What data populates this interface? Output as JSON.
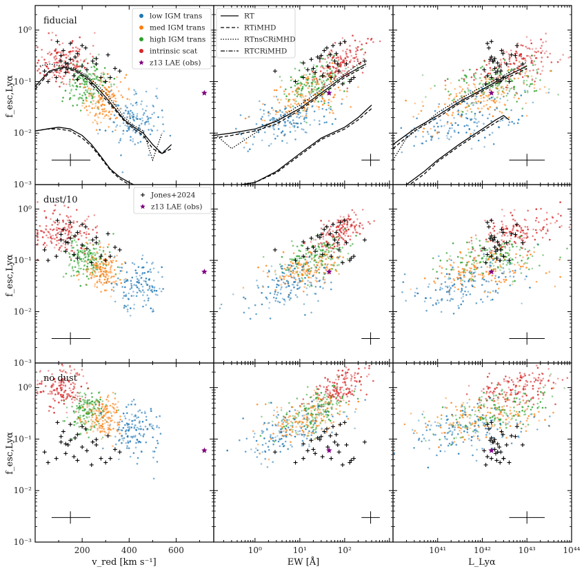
{
  "chart_data": {
    "type": "scatter",
    "layout": "3x3 grid of panels sharing axes",
    "colors": {
      "low": "#1f77b4",
      "med": "#ff7f0e",
      "high": "#2ca02c",
      "intrinsic": "#d62728",
      "obs": "#800080",
      "jones": "#000000"
    },
    "rows": [
      {
        "label": "fiducial"
      },
      {
        "label": "dust/10"
      },
      {
        "label": "no dust"
      }
    ],
    "columns": [
      {
        "xlabel": "v_red [km s⁻¹]",
        "xscale": "linear",
        "xlim": [
          0,
          760
        ],
        "xticks": [
          200,
          400,
          600
        ],
        "xticklabels": [
          "200",
          "400",
          "600"
        ]
      },
      {
        "xlabel": "EW [Å]",
        "xscale": "log",
        "xlim": [
          0.12,
          1200
        ],
        "xticks": [
          1,
          10,
          100
        ],
        "xticklabels": [
          "10⁰",
          "10¹",
          "10²"
        ]
      },
      {
        "xlabel": "L_Lyα",
        "xscale": "log",
        "xlim": [
          1e+40,
          1e+44
        ],
        "xticks": [
          1e+41,
          1e+42,
          1e+43,
          1e+44
        ],
        "xticklabels": [
          "10⁴¹",
          "10⁴²",
          "10⁴³",
          "10⁴⁴"
        ]
      }
    ],
    "ylabel": "f_esc,Lyα",
    "yscale": "log",
    "ylim": [
      0.001,
      3
    ],
    "yticks": [
      0.001,
      0.01,
      0.1,
      1
    ],
    "yticklabels": [
      "10⁻³",
      "10⁻²",
      "10⁻¹",
      "10⁰"
    ],
    "legend_scatter": {
      "location": "upper-right of top-left panel",
      "entries": [
        {
          "label": "low IGM trans",
          "color_key": "low"
        },
        {
          "label": "med IGM trans",
          "color_key": "med"
        },
        {
          "label": "high IGM trans",
          "color_key": "high"
        },
        {
          "label": "intrinsic scat",
          "color_key": "intrinsic"
        },
        {
          "label": "z13 LAE (obs)",
          "color_key": "obs",
          "marker": "star"
        }
      ]
    },
    "legend_lines": {
      "location": "upper-left of top-middle panel",
      "entries": [
        {
          "label": "RT",
          "dash": "solid"
        },
        {
          "label": "RTiMHD",
          "dash": "dashed"
        },
        {
          "label": "RTnsCRiMHD",
          "dash": "dotted"
        },
        {
          "label": "RTCRiMHD",
          "dash": "dashdot"
        }
      ]
    },
    "legend_obs": {
      "location": "upper-right of middle-left panel",
      "entries": [
        {
          "label": "Jones+2024",
          "color_key": "jones",
          "marker": "plus"
        },
        {
          "label": "z13 LAE (obs)",
          "color_key": "obs",
          "marker": "star"
        }
      ]
    },
    "z13_lae": {
      "vred": 720,
      "ew": 45,
      "lum": 1.6e+42,
      "fesc": 0.06
    },
    "error_bar_sample": {
      "vred": [
        150,
        110
      ],
      "ew": [
        380,
        1.6
      ],
      "lum": [
        1e+43,
        2.5
      ],
      "fesc": 0.003
    },
    "jones2024": [
      {
        "v": 40,
        "ew": 2.8,
        "l": 2.2e+42,
        "f": 0.16
      },
      {
        "v": 55,
        "ew": 8,
        "l": 2.5e+42,
        "f": 0.1
      },
      {
        "v": 90,
        "ew": 12,
        "l": 3e+42,
        "f": 0.12
      },
      {
        "v": 110,
        "ew": 30,
        "l": 5.5e+42,
        "f": 0.32
      },
      {
        "v": 95,
        "ew": 100,
        "l": 1.6e+42,
        "f": 0.6
      },
      {
        "v": 130,
        "ew": 12,
        "l": 2.2e+42,
        "f": 0.23
      },
      {
        "v": 150,
        "ew": 18,
        "l": 1.5e+42,
        "f": 0.27
      },
      {
        "v": 170,
        "ew": 25,
        "l": 1.6e+42,
        "f": 0.3
      },
      {
        "v": 200,
        "ew": 55,
        "l": 6e+42,
        "f": 0.5
      },
      {
        "v": 215,
        "ew": 40,
        "l": 1.4e+42,
        "f": 0.45
      },
      {
        "v": 245,
        "ew": 60,
        "l": 1.8e+42,
        "f": 0.25
      },
      {
        "v": 130,
        "ew": 22,
        "l": 2e+42,
        "f": 0.15
      },
      {
        "v": 165,
        "ew": 32,
        "l": 1.3e+42,
        "f": 0.13
      },
      {
        "v": 260,
        "ew": 70,
        "l": 3.5e+42,
        "f": 0.22
      },
      {
        "v": 280,
        "ew": 50,
        "l": 1.6e+42,
        "f": 0.12
      },
      {
        "v": 240,
        "ew": 90,
        "l": 1.2e+42,
        "f": 0.09
      },
      {
        "v": 300,
        "ew": 130,
        "l": 4e+42,
        "f": 0.1
      },
      {
        "v": 320,
        "ew": 160,
        "l": 3e+42,
        "f": 0.12
      },
      {
        "v": 340,
        "ew": 20,
        "l": 1.9e+42,
        "f": 0.18
      },
      {
        "v": 200,
        "ew": 42,
        "l": 2.4e+42,
        "f": 0.2
      },
      {
        "v": 180,
        "ew": 65,
        "l": 2.9e+42,
        "f": 0.35
      },
      {
        "v": 150,
        "ew": 80,
        "l": 1.3e+42,
        "f": 0.55
      },
      {
        "v": 120,
        "ew": 35,
        "l": 2.7e+42,
        "f": 0.4
      },
      {
        "v": 140,
        "ew": 110,
        "l": 8e+42,
        "f": 0.22
      },
      {
        "v": 260,
        "ew": 28,
        "l": 1.9e+42,
        "f": 0.28
      },
      {
        "v": 220,
        "ew": 15,
        "l": 1.1e+42,
        "f": 0.17
      },
      {
        "v": 310,
        "ew": 48,
        "l": 4.5e+42,
        "f": 0.33
      },
      {
        "v": 360,
        "ew": 75,
        "l": 2.6e+42,
        "f": 0.16
      },
      {
        "v": 180,
        "ew": 140,
        "l": 2.1e+42,
        "f": 0.11
      },
      {
        "v": 110,
        "ew": 280,
        "l": 1.7e+42,
        "f": 0.25
      }
    ],
    "curves": [
      {
        "row": 0,
        "col": 0,
        "style": "solid",
        "x": [
          0,
          60,
          120,
          170,
          220,
          260,
          300,
          340,
          380,
          420,
          460,
          500,
          540,
          580
        ],
        "y": [
          0.08,
          0.16,
          0.19,
          0.17,
          0.12,
          0.08,
          0.05,
          0.03,
          0.018,
          0.013,
          0.01,
          0.006,
          0.004,
          0.006
        ]
      },
      {
        "row": 0,
        "col": 0,
        "style": "dashed",
        "x": [
          0,
          60,
          120,
          170,
          220,
          260,
          300,
          340,
          380,
          420,
          460,
          500,
          540,
          580
        ],
        "y": [
          0.07,
          0.15,
          0.18,
          0.16,
          0.11,
          0.07,
          0.045,
          0.028,
          0.017,
          0.012,
          0.009,
          0.005,
          0.004,
          0.005
        ]
      },
      {
        "row": 0,
        "col": 0,
        "style": "dotted",
        "x": [
          20,
          60,
          120,
          170,
          220,
          260,
          300,
          340,
          380,
          420,
          460,
          500,
          540
        ],
        "y": [
          0.2,
          0.22,
          0.2,
          0.18,
          0.13,
          0.09,
          0.06,
          0.035,
          0.02,
          0.014,
          0.011,
          0.003,
          0.01
        ]
      },
      {
        "row": 0,
        "col": 0,
        "style": "solid",
        "x": [
          0,
          50,
          100,
          150,
          200,
          240,
          280,
          320,
          360,
          400,
          440
        ],
        "y": [
          0.011,
          0.012,
          0.013,
          0.012,
          0.009,
          0.006,
          0.0035,
          0.002,
          0.0014,
          0.0011,
          0.0009
        ]
      },
      {
        "row": 0,
        "col": 0,
        "style": "dashed",
        "x": [
          0,
          50,
          100,
          150,
          200,
          240,
          280,
          320,
          360,
          400,
          440
        ],
        "y": [
          0.011,
          0.012,
          0.012,
          0.011,
          0.008,
          0.0055,
          0.0033,
          0.0019,
          0.0013,
          0.001,
          0.0009
        ]
      },
      {
        "row": 0,
        "col": 1,
        "style": "solid",
        "x": [
          0.12,
          0.3,
          1,
          3,
          10,
          30,
          100,
          300
        ],
        "y": [
          0.009,
          0.01,
          0.012,
          0.017,
          0.03,
          0.06,
          0.13,
          0.22
        ]
      },
      {
        "row": 0,
        "col": 1,
        "style": "dashed",
        "x": [
          0.12,
          0.3,
          1,
          3,
          10,
          30,
          100,
          300
        ],
        "y": [
          0.008,
          0.009,
          0.011,
          0.015,
          0.028,
          0.055,
          0.12,
          0.2
        ]
      },
      {
        "row": 0,
        "col": 1,
        "style": "dotted",
        "x": [
          0.12,
          0.3,
          1,
          3,
          10,
          30,
          100,
          250
        ],
        "y": [
          0.01,
          0.005,
          0.01,
          0.018,
          0.035,
          0.07,
          0.14,
          0.25
        ]
      },
      {
        "row": 0,
        "col": 1,
        "style": "solid",
        "x": [
          0.5,
          1,
          3,
          10,
          30,
          100,
          200,
          400
        ],
        "y": [
          0.001,
          0.0011,
          0.0018,
          0.004,
          0.008,
          0.013,
          0.02,
          0.035
        ]
      },
      {
        "row": 0,
        "col": 1,
        "style": "dashed",
        "x": [
          0.5,
          1,
          3,
          10,
          30,
          100,
          200,
          400
        ],
        "y": [
          0.001,
          0.0011,
          0.0017,
          0.0037,
          0.0075,
          0.012,
          0.018,
          0.03
        ]
      },
      {
        "row": 0,
        "col": 2,
        "style": "solid",
        "x": [
          1e+40,
          3e+40,
          1e+41,
          3e+41,
          1e+42,
          3e+42,
          1e+43
        ],
        "y": [
          0.006,
          0.012,
          0.022,
          0.04,
          0.07,
          0.12,
          0.2
        ]
      },
      {
        "row": 0,
        "col": 2,
        "style": "dashed",
        "x": [
          1e+40,
          3e+40,
          1e+41,
          3e+41,
          1e+42,
          3e+42,
          1e+43
        ],
        "y": [
          0.005,
          0.011,
          0.02,
          0.037,
          0.065,
          0.11,
          0.18
        ]
      },
      {
        "row": 0,
        "col": 2,
        "style": "dotted",
        "x": [
          1e+40,
          2e+40,
          5e+40,
          1e+41,
          3e+41,
          1e+42,
          3e+42,
          1e+43
        ],
        "y": [
          0.003,
          0.008,
          0.015,
          0.025,
          0.045,
          0.08,
          0.13,
          0.24
        ]
      },
      {
        "row": 0,
        "col": 2,
        "style": "solid",
        "x": [
          2e+40,
          5e+40,
          1e+41,
          3e+41,
          1e+42,
          2e+42,
          3e+42,
          4e+42
        ],
        "y": [
          0.001,
          0.0018,
          0.003,
          0.006,
          0.012,
          0.018,
          0.022,
          0.018
        ]
      },
      {
        "row": 0,
        "col": 2,
        "style": "dashed",
        "x": [
          2e+40,
          5e+40,
          1e+41,
          3e+41,
          1e+42,
          2e+42,
          3e+42
        ],
        "y": [
          0.0009,
          0.0016,
          0.0028,
          0.0055,
          0.011,
          0.016,
          0.02
        ]
      }
    ]
  }
}
